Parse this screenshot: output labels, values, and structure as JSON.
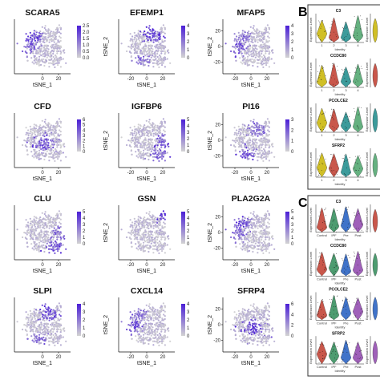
{
  "chart_data": [
    {
      "type": "scatter",
      "title": "SCARA5",
      "xlabel": "tSNE_1",
      "ylabel": "tSNE_2",
      "x_ticks": [
        "0",
        "20"
      ],
      "y_ticks": [],
      "colorbar_ticks": [
        "2.5",
        "2.0",
        "1.5",
        "1.0",
        "0.5",
        "0.0"
      ],
      "colorbar_max": 2.5,
      "low_color": "#d3d3d3",
      "high_color": "#4b1fd6"
    },
    {
      "type": "scatter",
      "title": "EFEMP1",
      "xlabel": "tSNE_1",
      "ylabel": "tSNE_2",
      "x_ticks": [
        "-20",
        "0",
        "20"
      ],
      "y_ticks": [],
      "colorbar_ticks": [
        "4",
        "3",
        "2",
        "1",
        "0"
      ],
      "colorbar_max": 4,
      "low_color": "#d3d3d3",
      "high_color": "#4b1fd6"
    },
    {
      "type": "scatter",
      "title": "MFAP5",
      "xlabel": "tSNE_1",
      "ylabel": "tSNE_2",
      "x_ticks": [
        "-20",
        "0",
        "20"
      ],
      "y_ticks": [
        "20",
        "0",
        "-20"
      ],
      "colorbar_ticks": [
        "4",
        "3",
        "2",
        "1",
        "0"
      ],
      "colorbar_max": 4,
      "low_color": "#d3d3d3",
      "high_color": "#4b1fd6"
    },
    {
      "type": "scatter",
      "title": "CFD",
      "xlabel": "tSNE_1",
      "ylabel": "tSNE_2",
      "x_ticks": [
        "0",
        "20"
      ],
      "y_ticks": [],
      "colorbar_ticks": [
        "6",
        "5",
        "4",
        "3",
        "2",
        "1",
        "0"
      ],
      "colorbar_max": 6,
      "low_color": "#d3d3d3",
      "high_color": "#4b1fd6"
    },
    {
      "type": "scatter",
      "title": "IGFBP6",
      "xlabel": "tSNE_1",
      "ylabel": "tSNE_2",
      "x_ticks": [
        "-20",
        "0",
        "20"
      ],
      "y_ticks": [],
      "colorbar_ticks": [
        "5",
        "4",
        "3",
        "2",
        "1",
        "0"
      ],
      "colorbar_max": 5,
      "low_color": "#d3d3d3",
      "high_color": "#4b1fd6"
    },
    {
      "type": "scatter",
      "title": "PI16",
      "xlabel": "tSNE_1",
      "ylabel": "tSNE_2",
      "x_ticks": [
        "-20",
        "0",
        "20"
      ],
      "y_ticks": [
        "20",
        "0",
        "-20"
      ],
      "colorbar_ticks": [
        "3",
        "2",
        "1",
        "0"
      ],
      "colorbar_max": 3,
      "low_color": "#d3d3d3",
      "high_color": "#4b1fd6"
    },
    {
      "type": "scatter",
      "title": "CLU",
      "xlabel": "tSNE_1",
      "ylabel": "tSNE_2",
      "x_ticks": [
        "0",
        "20"
      ],
      "y_ticks": [],
      "colorbar_ticks": [
        "5",
        "4",
        "3",
        "2",
        "1",
        "0"
      ],
      "colorbar_max": 5,
      "low_color": "#d3d3d3",
      "high_color": "#4b1fd6"
    },
    {
      "type": "scatter",
      "title": "GSN",
      "xlabel": "tSNE_1",
      "ylabel": "tSNE_2",
      "x_ticks": [
        "-20",
        "0",
        "20"
      ],
      "y_ticks": [],
      "colorbar_ticks": [
        "5",
        "4",
        "3",
        "2",
        "1",
        "0"
      ],
      "colorbar_max": 5,
      "low_color": "#d3d3d3",
      "high_color": "#4b1fd6"
    },
    {
      "type": "scatter",
      "title": "PLA2G2A",
      "xlabel": "tSNE_1",
      "ylabel": "tSNE_2",
      "x_ticks": [
        "-20",
        "0",
        "20"
      ],
      "y_ticks": [
        "20",
        "0",
        "-20"
      ],
      "colorbar_ticks": [
        "5",
        "4",
        "3",
        "2",
        "1",
        "0"
      ],
      "colorbar_max": 5,
      "low_color": "#d3d3d3",
      "high_color": "#4b1fd6"
    },
    {
      "type": "scatter",
      "title": "SLPI",
      "xlabel": "tSNE_1",
      "ylabel": "tSNE_2",
      "x_ticks": [
        "0",
        "20"
      ],
      "y_ticks": [],
      "colorbar_ticks": [
        "4",
        "3",
        "2",
        "1",
        "0"
      ],
      "colorbar_max": 4,
      "low_color": "#d3d3d3",
      "high_color": "#4b1fd6"
    },
    {
      "type": "scatter",
      "title": "CXCL14",
      "xlabel": "tSNE_1",
      "ylabel": "tSNE_2",
      "x_ticks": [
        "-20",
        "0",
        "20"
      ],
      "y_ticks": [],
      "colorbar_ticks": [
        "4",
        "3",
        "2",
        "1",
        "0"
      ],
      "colorbar_max": 4,
      "low_color": "#d3d3d3",
      "high_color": "#4b1fd6"
    },
    {
      "type": "scatter",
      "title": "SFRP4",
      "xlabel": "tSNE_1",
      "ylabel": "tSNE_2",
      "x_ticks": [
        "-20",
        "0",
        "20"
      ],
      "y_ticks": [
        "20",
        "0",
        "-20"
      ],
      "colorbar_ticks": [
        "6",
        "4",
        "2",
        "0"
      ],
      "colorbar_max": 6,
      "low_color": "#d3d3d3",
      "high_color": "#4b1fd6"
    }
  ],
  "violin_panels": {
    "B": {
      "label": "B",
      "genes": [
        "C3",
        "CCDC80",
        "PCOLCE2",
        "SFRP2"
      ],
      "ylabel": "Expression Level",
      "xlabel": "Identity",
      "groups": [
        "1",
        "2",
        "3",
        "4"
      ],
      "colors": [
        "#c8b400",
        "#c0392b",
        "#1a8a8a",
        "#4aa36a"
      ]
    },
    "C": {
      "label": "C",
      "genes": [
        "C3",
        "CCDC80",
        "PCOLCE2",
        "SFRP2"
      ],
      "ylabel": "Expression Level",
      "xlabel": "Identity",
      "groups": [
        "Control",
        "IPF",
        "Pre",
        "Post"
      ],
      "colors": [
        "#c0392b",
        "#2e8b57",
        "#1e5bbf",
        "#8e44ad"
      ]
    }
  }
}
